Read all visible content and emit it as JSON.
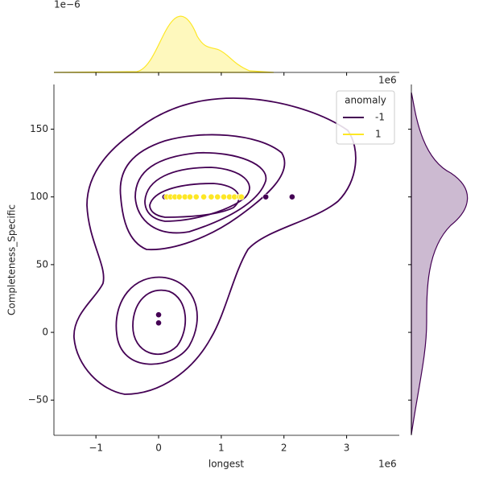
{
  "chart_data": {
    "type": "scatter",
    "xlabel": "longest",
    "ylabel": "Completeness_Specific",
    "x_offset_label": "1e6",
    "top_offset_label": "1e−6",
    "right_offset_label": "1e6",
    "xlim": [
      -1.67,
      3.84
    ],
    "ylim": [
      -76,
      183
    ],
    "xticks": [
      {
        "value": -1,
        "label": "−1"
      },
      0,
      1,
      2,
      3
    ],
    "yticks": [
      {
        "value": -50,
        "label": "−50"
      },
      0,
      50,
      100,
      150
    ],
    "legend_title": "anomaly",
    "legend": "upper right",
    "series": [
      {
        "name": "-1",
        "color": "#440154",
        "x": [
          0.1,
          1.71,
          2.13,
          0,
          0
        ],
        "values": [
          100,
          100,
          100,
          13,
          7
        ]
      },
      {
        "name": "1",
        "color": "#fde725",
        "x": [
          0.13,
          0.19,
          0.26,
          0.33,
          0.42,
          0.5,
          0.6,
          0.72,
          0.84,
          0.94,
          1.04,
          1.13,
          1.21,
          1.29,
          1.32
        ],
        "values": [
          100,
          100,
          100,
          100,
          100,
          100,
          100,
          100,
          100,
          100,
          100,
          100,
          100,
          100,
          100
        ]
      }
    ]
  }
}
